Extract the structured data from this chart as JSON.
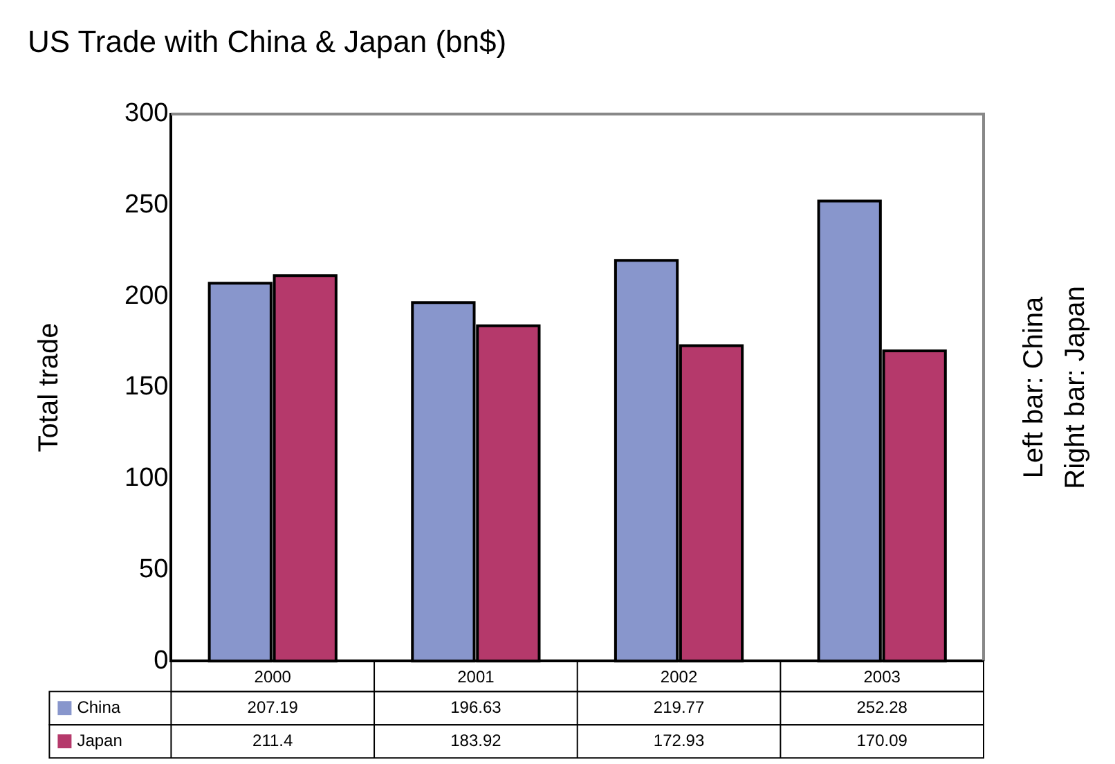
{
  "chart_data": {
    "type": "bar",
    "title": "US Trade with China & Japan (bn$)",
    "ylabel": "Total trade",
    "categories": [
      "2000",
      "2001",
      "2002",
      "2003"
    ],
    "series": [
      {
        "name": "China",
        "color": "#8896cc",
        "values": [
          207.19,
          196.63,
          219.77,
          252.28
        ]
      },
      {
        "name": "Japan",
        "color": "#b5396b",
        "values": [
          211.4,
          183.92,
          172.93,
          170.09
        ]
      }
    ],
    "ylim": [
      0,
      300
    ],
    "yticks": [
      0,
      50,
      100,
      150,
      200,
      250,
      300
    ],
    "grid": false,
    "legend": "bottom left",
    "data_labels": true,
    "annotations": [
      "Left bar: China",
      "Right bar: Japan"
    ]
  }
}
